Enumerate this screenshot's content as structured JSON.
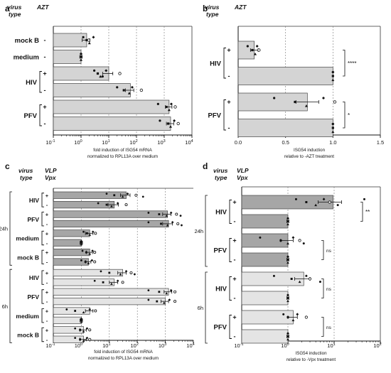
{
  "chart_data": [
    {
      "panel": "a",
      "type": "bar",
      "orientation": "horizontal",
      "scale": "log",
      "header": [
        "virus type",
        "AZT"
      ],
      "xlabel": [
        "fold induction of ISG54 mRNA",
        "normalized to RPL13A over medium"
      ],
      "xlim": [
        0.1,
        10000
      ],
      "xticks": [
        "10-1",
        "100",
        "101",
        "102",
        "103",
        "104"
      ],
      "gridlines": [
        1,
        10,
        100,
        1000
      ],
      "rows": [
        {
          "group": "mock B",
          "sign": "-",
          "value": 1.6,
          "error": 0.5,
          "color": "#d4d4d4",
          "points": [
            1.2,
            1.6,
            2.0,
            2.8,
            1.9
          ]
        },
        {
          "group": "medium",
          "sign": "-",
          "value": 1.0,
          "error": 0.1,
          "color": "#d4d4d4",
          "points": [
            1.0,
            1.0,
            1.0,
            1.0
          ]
        },
        {
          "group": "HIV",
          "sign": "+",
          "value": 10,
          "error": 4,
          "color": "#d4d4d4",
          "points": [
            3,
            4,
            5,
            8,
            25,
            6
          ]
        },
        {
          "group": "HIV",
          "sign": "-",
          "value": 60,
          "error": 20,
          "color": "#d4d4d4",
          "points": [
            20,
            35,
            55,
            70,
            150
          ]
        },
        {
          "group": "PFV",
          "sign": "+",
          "value": 1500,
          "error": 400,
          "color": "#d4d4d4",
          "points": [
            600,
            1200,
            1500,
            1800,
            2500
          ]
        },
        {
          "group": "PFV",
          "sign": "-",
          "value": 1700,
          "error": 500,
          "color": "#d4d4d4",
          "points": [
            700,
            1400,
            1700,
            2300,
            3200
          ]
        }
      ]
    },
    {
      "panel": "b",
      "type": "bar",
      "orientation": "horizontal",
      "scale": "linear",
      "header": [
        "virus type",
        "AZT"
      ],
      "xlabel": [
        "ISG54 induction",
        "relative to -AZT treatment"
      ],
      "xlim": [
        0,
        1.5
      ],
      "xticks": [
        "0.0",
        "0.5",
        "1.0",
        "1.5"
      ],
      "gridlines": [
        0.5,
        1.0
      ],
      "rows": [
        {
          "group": "HIV",
          "sign": "+",
          "value": 0.17,
          "error": 0.04,
          "color": "#d4d4d4",
          "points": [
            0.1,
            0.15,
            0.18,
            0.2,
            0.22
          ]
        },
        {
          "group": "HIV",
          "sign": "-",
          "value": 1.0,
          "error": 0,
          "color": "#d4d4d4",
          "points": [
            1.0,
            1.0,
            1.0,
            1.0
          ]
        },
        {
          "group": "PFV",
          "sign": "+",
          "value": 0.73,
          "error": 0.12,
          "color": "#d4d4d4",
          "points": [
            0.38,
            0.6,
            0.72,
            0.9,
            1.02
          ]
        },
        {
          "group": "PFV",
          "sign": "-",
          "value": 1.0,
          "error": 0,
          "color": "#d4d4d4",
          "points": [
            1.0,
            1.0,
            1.0,
            1.0
          ]
        }
      ],
      "significance": [
        {
          "rows": [
            0,
            1
          ],
          "label": "****"
        },
        {
          "rows": [
            2,
            3
          ],
          "label": "*"
        }
      ]
    },
    {
      "panel": "c",
      "type": "bar",
      "orientation": "horizontal",
      "scale": "log",
      "header": [
        "virus type",
        "VLP Vpx"
      ],
      "xlabel": [
        "fold induction of ISG54 mRNA",
        "normalized to RPL13A over medium"
      ],
      "xlim": [
        0.1,
        10000
      ],
      "xticks": [
        "10-1",
        "100",
        "101",
        "102",
        "103",
        "104"
      ],
      "gridlines": [
        1,
        10,
        100,
        1000
      ],
      "timepoints": [
        {
          "label": "24h",
          "rows": [
            0,
            7
          ]
        },
        {
          "label": "6h",
          "rows": [
            8,
            15
          ]
        }
      ],
      "rows": [
        {
          "group": "HIV",
          "sign": "+",
          "value": 40,
          "error": 15,
          "color": "#a6a6a6",
          "points": [
            8,
            15,
            30,
            45,
            90,
            160
          ]
        },
        {
          "group": "HIV",
          "sign": "-",
          "value": 15,
          "error": 6,
          "color": "#a6a6a6",
          "points": [
            4,
            8,
            12,
            20,
            40
          ]
        },
        {
          "group": "PFV",
          "sign": "+",
          "value": 1200,
          "error": 400,
          "color": "#a6a6a6",
          "points": [
            250,
            600,
            1100,
            1600,
            2500,
            3500
          ]
        },
        {
          "group": "PFV",
          "sign": "-",
          "value": 1300,
          "error": 500,
          "color": "#a6a6a6",
          "points": [
            250,
            700,
            1200,
            1800,
            2800,
            3800
          ]
        },
        {
          "group": "medium",
          "sign": "+",
          "value": 2.0,
          "error": 0.6,
          "color": "#a6a6a6",
          "points": [
            1.2,
            1.6,
            2.0,
            2.6,
            3.2
          ]
        },
        {
          "group": "medium",
          "sign": "-",
          "value": 1.0,
          "error": 0.1,
          "color": "#a6a6a6",
          "points": [
            1.0,
            1.0,
            1.0,
            1.0
          ]
        },
        {
          "group": "mock B",
          "sign": "+",
          "value": 2.0,
          "error": 0.5,
          "color": "#a6a6a6",
          "points": [
            1.1,
            1.5,
            2.0,
            2.5,
            3.0
          ]
        },
        {
          "group": "mock B",
          "sign": "-",
          "value": 1.8,
          "error": 0.4,
          "color": "#a6a6a6",
          "points": [
            1.0,
            1.4,
            1.8,
            2.4,
            3.0
          ]
        },
        {
          "group": "HIV",
          "sign": "+",
          "value": 30,
          "error": 10,
          "color": "#e4e4e4",
          "points": [
            5,
            10,
            25,
            40,
            60,
            80
          ]
        },
        {
          "group": "HIV",
          "sign": "-",
          "value": 15,
          "error": 5,
          "color": "#e4e4e4",
          "points": [
            3,
            6,
            12,
            20,
            30
          ]
        },
        {
          "group": "PFV",
          "sign": "+",
          "value": 1300,
          "error": 400,
          "color": "#e4e4e4",
          "points": [
            250,
            600,
            1100,
            1600,
            2200
          ]
        },
        {
          "group": "PFV",
          "sign": "-",
          "value": 1000,
          "error": 300,
          "color": "#e4e4e4",
          "points": [
            250,
            500,
            900,
            1400,
            2200
          ]
        },
        {
          "group": "medium",
          "sign": "+",
          "value": 2.0,
          "error": 0.6,
          "color": "#e4e4e4",
          "points": [
            0.3,
            0.6,
            1.2,
            2.0,
            3.2
          ]
        },
        {
          "group": "medium",
          "sign": "-",
          "value": 1.0,
          "error": 0.1,
          "color": "#e4e4e4",
          "points": [
            1.0,
            1.0,
            1.0,
            1.0
          ]
        },
        {
          "group": "mock B",
          "sign": "+",
          "value": 1.2,
          "error": 0.3,
          "color": "#e4e4e4",
          "points": [
            0.6,
            0.9,
            1.2,
            1.6,
            2.0
          ]
        },
        {
          "group": "mock B",
          "sign": "-",
          "value": 1.2,
          "error": 0.3,
          "color": "#e4e4e4",
          "points": [
            0.6,
            0.9,
            1.2,
            1.6,
            2.0
          ]
        }
      ]
    },
    {
      "panel": "d",
      "type": "bar",
      "orientation": "horizontal",
      "scale": "log",
      "header": [
        "virus type",
        "VLP Vpx"
      ],
      "xlabel": [
        "ISG54 induction",
        "relative to -Vpx treatment"
      ],
      "xlim": [
        0.1,
        100
      ],
      "xticks": [
        "10-1",
        "100",
        "101",
        "102"
      ],
      "gridlines": [
        1,
        10
      ],
      "timepoints": [
        {
          "label": "24h",
          "rows": [
            0,
            3
          ]
        },
        {
          "label": "6h",
          "rows": [
            4,
            7
          ]
        }
      ],
      "rows": [
        {
          "group": "HIV",
          "sign": "+",
          "value": 9.5,
          "error": 5,
          "color": "#a6a6a6",
          "points": [
            1.5,
            2.5,
            4,
            6,
            8,
            12,
            45
          ]
        },
        {
          "group": "HIV",
          "sign": "-",
          "value": 1.0,
          "error": 0.05,
          "color": "#a6a6a6",
          "points": [
            1.0,
            1.0,
            1.0,
            1.0
          ]
        },
        {
          "group": "PFV",
          "sign": "+",
          "value": 1.0,
          "error": 0.3,
          "color": "#a6a6a6",
          "points": [
            0.25,
            0.7,
            1.0,
            1.3,
            1.8,
            2.2
          ]
        },
        {
          "group": "PFV",
          "sign": "-",
          "value": 1.0,
          "error": 0.05,
          "color": "#a6a6a6",
          "points": [
            1.0,
            1.0,
            1.0,
            1.0
          ]
        },
        {
          "group": "HIV",
          "sign": "+",
          "value": 2.2,
          "error": 0.8,
          "color": "#e4e4e4",
          "points": [
            0.5,
            1.2,
            1.8,
            2.5,
            3.0,
            5.0
          ]
        },
        {
          "group": "HIV",
          "sign": "-",
          "value": 1.0,
          "error": 0.05,
          "color": "#e4e4e4",
          "points": [
            1.0,
            1.0,
            1.0,
            1.0
          ]
        },
        {
          "group": "PFV",
          "sign": "+",
          "value": 1.3,
          "error": 0.3,
          "color": "#e4e4e4",
          "points": [
            0.8,
            1.0,
            1.3,
            1.6,
            2.5
          ]
        },
        {
          "group": "PFV",
          "sign": "-",
          "value": 1.0,
          "error": 0.05,
          "color": "#e4e4e4",
          "points": [
            1.0,
            1.0,
            1.0,
            1.0
          ]
        }
      ],
      "significance": [
        {
          "rows": [
            0,
            1
          ],
          "label": "**"
        },
        {
          "rows": [
            2,
            3
          ],
          "label": "ns"
        },
        {
          "rows": [
            4,
            5
          ],
          "label": "ns"
        },
        {
          "rows": [
            6,
            7
          ],
          "label": "ns"
        }
      ]
    }
  ]
}
